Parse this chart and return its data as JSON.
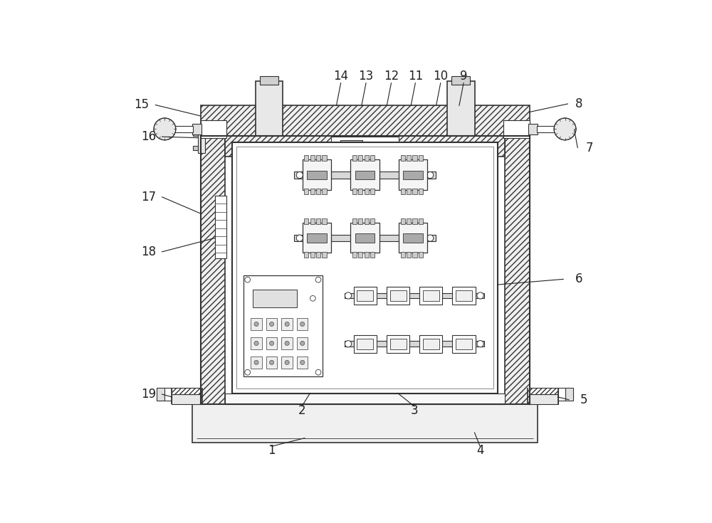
{
  "bg_color": "#ffffff",
  "line_color": "#333333",
  "label_fontsize": 12,
  "fig_width": 10.0,
  "fig_height": 7.35,
  "dpi": 100
}
